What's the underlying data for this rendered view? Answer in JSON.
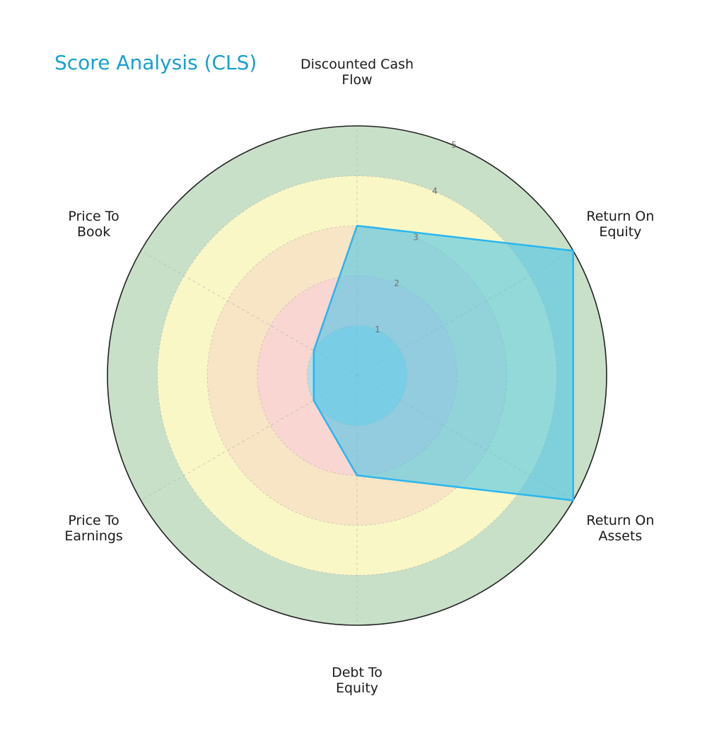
{
  "chart_data": {
    "type": "radar",
    "title": "Score Analysis (CLS)",
    "title_color": "#17a0d0",
    "categories": [
      [
        "Discounted Cash",
        "Flow"
      ],
      [
        "Return On",
        "Equity"
      ],
      [
        "Return On",
        "Assets"
      ],
      [
        "Debt To",
        "Equity"
      ],
      [
        "Price To",
        "Earnings"
      ],
      [
        "Price To",
        "Book"
      ]
    ],
    "rlim": [
      0,
      5
    ],
    "ticks": [
      "1",
      "2",
      "3",
      "4",
      "5"
    ],
    "band_colors": [
      "#b9dde4",
      "#f9d6d2",
      "#f8e5c5",
      "#faf7c6",
      "#c8e0c8"
    ],
    "series": [
      {
        "values": [
          3,
          5,
          5,
          2,
          1,
          1
        ],
        "line_color": "#29b6f0",
        "fill_color": "#4ec5e6"
      }
    ],
    "grid": true
  }
}
